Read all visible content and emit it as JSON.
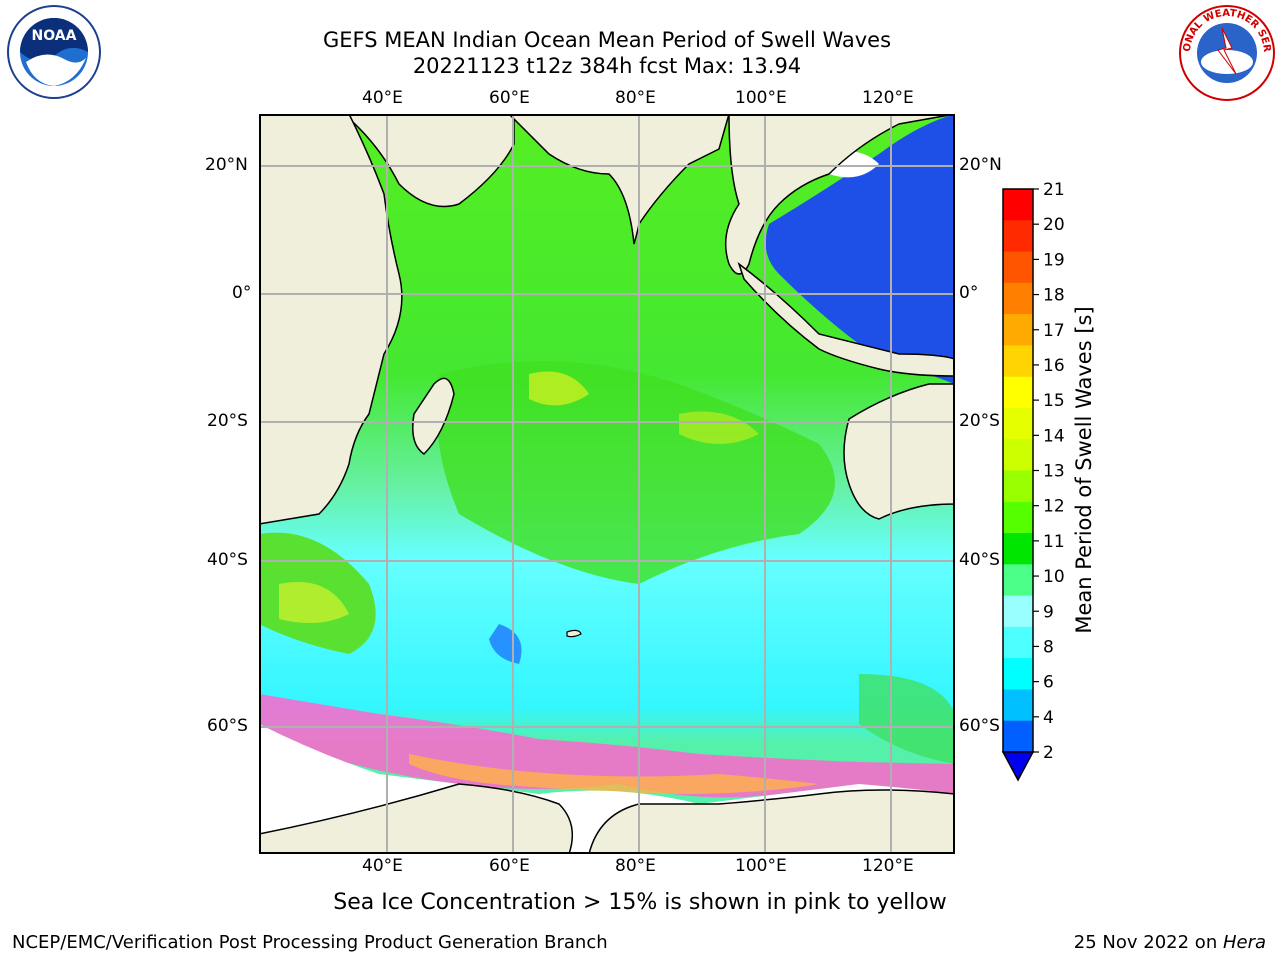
{
  "header": {
    "title_line1": "GEFS MEAN Indian Ocean Mean Period of Swell Waves",
    "title_line2": "20221123 t12z 384h fcst   Max: 13.94"
  },
  "logos": {
    "left": "NOAA",
    "right_text": "NATIONAL WEATHER SERVICE"
  },
  "map": {
    "lon_labels": [
      "40°E",
      "60°E",
      "80°E",
      "100°E",
      "120°E"
    ],
    "lat_labels": [
      "20°N",
      "0°",
      "20°S",
      "40°S",
      "60°S"
    ]
  },
  "colorbar": {
    "label": "Mean Period of Swell Waves [s]",
    "ticks": [
      "21",
      "20",
      "19",
      "18",
      "17",
      "16",
      "15",
      "14",
      "13",
      "12",
      "11",
      "10",
      "9",
      "8",
      "6",
      "4",
      "2"
    ],
    "colors": [
      "#ff0000",
      "#ff2a00",
      "#ff5500",
      "#ff8000",
      "#ffaa00",
      "#ffd400",
      "#ffff00",
      "#e6ff00",
      "#ccff00",
      "#99ff00",
      "#55ff00",
      "#00e600",
      "#4cff88",
      "#99ffff",
      "#4dffff",
      "#00ffff",
      "#00c0ff",
      "#0060ff"
    ]
  },
  "caption": "Sea Ice Concentration > 15% is shown in pink to yellow",
  "footer": {
    "left": "NCEP/EMC/Verification Post Processing Product Generation Branch",
    "right_date": "25 Nov 2022 on ",
    "right_host": "Hera"
  }
}
